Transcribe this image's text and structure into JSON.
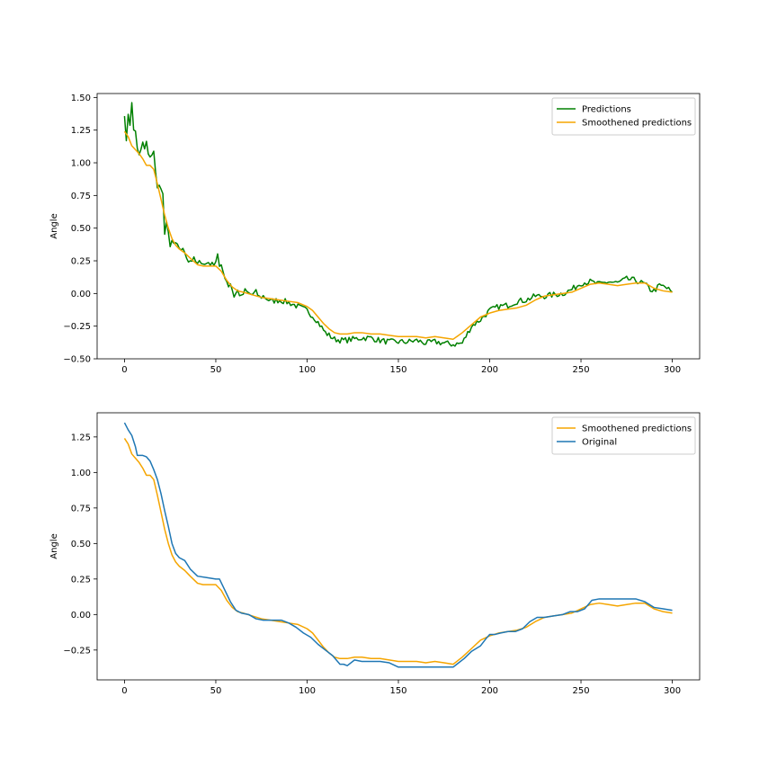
{
  "chart_data": [
    {
      "type": "line",
      "title": "",
      "xlabel": "",
      "ylabel": "Angle",
      "xlim": [
        -15,
        315
      ],
      "ylim": [
        -0.5,
        1.53
      ],
      "xticks": [
        0,
        50,
        100,
        150,
        200,
        250,
        300
      ],
      "yticks": [
        -0.5,
        -0.25,
        0.0,
        0.25,
        0.5,
        0.75,
        1.0,
        1.25,
        1.5
      ],
      "ytick_labels": [
        "−0.50",
        "−0.25",
        "0.00",
        "0.25",
        "0.50",
        "0.75",
        "1.00",
        "1.25",
        "1.50"
      ],
      "grid": false,
      "legend_position": "top-right",
      "series": [
        {
          "name": "Predictions",
          "color": "#008000",
          "noisy": true,
          "x": [
            0,
            1,
            2,
            3,
            4,
            5,
            6,
            7,
            8,
            10,
            11,
            12,
            13,
            14,
            15,
            16,
            17,
            18,
            19,
            20,
            21,
            22,
            23,
            24,
            25,
            26,
            27,
            28,
            30,
            33,
            35,
            38,
            40,
            42,
            44,
            46,
            48,
            50,
            51,
            52,
            53,
            55,
            57,
            58,
            60,
            62,
            64,
            66,
            68,
            70,
            72,
            74,
            76,
            78,
            80,
            85,
            90,
            95,
            100,
            105,
            110,
            115,
            120,
            125,
            130,
            135,
            140,
            145,
            150,
            155,
            160,
            165,
            170,
            175,
            180,
            185,
            190,
            195,
            200,
            205,
            210,
            215,
            220,
            225,
            230,
            235,
            240,
            245,
            250,
            255,
            260,
            265,
            270,
            275,
            280,
            285,
            288,
            290,
            293,
            296,
            300
          ],
          "y": [
            1.38,
            1.15,
            1.38,
            1.3,
            1.45,
            1.25,
            1.25,
            1.1,
            1.05,
            1.15,
            1.1,
            1.15,
            1.08,
            1.05,
            1.05,
            1.08,
            0.95,
            0.8,
            0.83,
            0.78,
            0.75,
            0.47,
            0.55,
            0.45,
            0.35,
            0.4,
            0.38,
            0.37,
            0.35,
            0.32,
            0.25,
            0.26,
            0.22,
            0.25,
            0.22,
            0.24,
            0.22,
            0.25,
            0.31,
            0.2,
            0.2,
            0.13,
            0.06,
            0.08,
            -0.02,
            0.02,
            -0.03,
            0.02,
            0.0,
            -0.01,
            0.01,
            -0.03,
            -0.02,
            -0.04,
            -0.06,
            -0.05,
            -0.07,
            -0.1,
            -0.13,
            -0.2,
            -0.3,
            -0.35,
            -0.36,
            -0.35,
            -0.34,
            -0.34,
            -0.36,
            -0.37,
            -0.37,
            -0.37,
            -0.36,
            -0.38,
            -0.37,
            -0.38,
            -0.39,
            -0.38,
            -0.25,
            -0.2,
            -0.13,
            -0.1,
            -0.09,
            -0.06,
            -0.05,
            -0.02,
            -0.02,
            -0.01,
            0.0,
            0.03,
            0.08,
            0.09,
            0.07,
            0.09,
            0.08,
            0.11,
            0.1,
            0.07,
            0.03,
            0.02,
            0.06,
            0.05,
            0.01
          ]
        },
        {
          "name": "Smoothened predictions",
          "color": "#f5a500",
          "x": [
            0,
            2,
            4,
            6,
            8,
            10,
            12,
            14,
            16,
            18,
            20,
            22,
            24,
            26,
            28,
            30,
            33,
            36,
            40,
            43,
            46,
            50,
            53,
            56,
            59,
            62,
            65,
            70,
            75,
            80,
            85,
            90,
            95,
            100,
            103,
            106,
            109,
            112,
            115,
            118,
            122,
            126,
            130,
            135,
            140,
            145,
            150,
            155,
            160,
            165,
            170,
            175,
            180,
            185,
            190,
            195,
            200,
            205,
            210,
            215,
            220,
            225,
            230,
            235,
            240,
            245,
            250,
            255,
            260,
            265,
            270,
            275,
            280,
            285,
            290,
            295,
            300
          ],
          "y": [
            1.24,
            1.2,
            1.13,
            1.1,
            1.07,
            1.03,
            0.98,
            0.98,
            0.95,
            0.84,
            0.72,
            0.6,
            0.5,
            0.42,
            0.37,
            0.34,
            0.31,
            0.27,
            0.22,
            0.21,
            0.21,
            0.21,
            0.17,
            0.1,
            0.05,
            0.02,
            0.01,
            -0.01,
            -0.03,
            -0.04,
            -0.05,
            -0.06,
            -0.07,
            -0.1,
            -0.13,
            -0.18,
            -0.23,
            -0.27,
            -0.3,
            -0.31,
            -0.31,
            -0.3,
            -0.3,
            -0.31,
            -0.31,
            -0.32,
            -0.33,
            -0.33,
            -0.33,
            -0.34,
            -0.33,
            -0.34,
            -0.35,
            -0.3,
            -0.24,
            -0.18,
            -0.15,
            -0.13,
            -0.12,
            -0.11,
            -0.09,
            -0.05,
            -0.02,
            -0.01,
            0.0,
            0.01,
            0.04,
            0.07,
            0.08,
            0.07,
            0.06,
            0.07,
            0.08,
            0.08,
            0.04,
            0.02,
            0.01
          ]
        }
      ]
    },
    {
      "type": "line",
      "title": "",
      "xlabel": "",
      "ylabel": "Angle",
      "xlim": [
        -15,
        315
      ],
      "ylim": [
        -0.46,
        1.42
      ],
      "xticks": [
        0,
        50,
        100,
        150,
        200,
        250,
        300
      ],
      "yticks": [
        -0.25,
        0.0,
        0.25,
        0.5,
        0.75,
        1.0,
        1.25
      ],
      "ytick_labels": [
        "−0.25",
        "0.00",
        "0.25",
        "0.50",
        "0.75",
        "1.00",
        "1.25"
      ],
      "grid": false,
      "legend_position": "top-right",
      "series": [
        {
          "name": "Smoothened predictions",
          "color": "#f5a500",
          "x": [
            0,
            2,
            4,
            6,
            8,
            10,
            12,
            14,
            16,
            18,
            20,
            22,
            24,
            26,
            28,
            30,
            33,
            36,
            40,
            43,
            46,
            50,
            53,
            56,
            59,
            62,
            65,
            70,
            75,
            80,
            85,
            90,
            95,
            100,
            103,
            106,
            109,
            112,
            115,
            118,
            122,
            126,
            130,
            135,
            140,
            145,
            150,
            155,
            160,
            165,
            170,
            175,
            180,
            185,
            190,
            195,
            200,
            205,
            210,
            215,
            220,
            225,
            230,
            235,
            240,
            245,
            250,
            255,
            260,
            265,
            270,
            275,
            280,
            285,
            290,
            295,
            300
          ],
          "y": [
            1.24,
            1.2,
            1.13,
            1.1,
            1.07,
            1.03,
            0.98,
            0.98,
            0.95,
            0.84,
            0.72,
            0.6,
            0.5,
            0.42,
            0.37,
            0.34,
            0.31,
            0.27,
            0.22,
            0.21,
            0.21,
            0.21,
            0.17,
            0.1,
            0.05,
            0.02,
            0.01,
            -0.01,
            -0.03,
            -0.04,
            -0.05,
            -0.06,
            -0.07,
            -0.1,
            -0.13,
            -0.18,
            -0.23,
            -0.27,
            -0.3,
            -0.31,
            -0.31,
            -0.3,
            -0.3,
            -0.31,
            -0.31,
            -0.32,
            -0.33,
            -0.33,
            -0.33,
            -0.34,
            -0.33,
            -0.34,
            -0.35,
            -0.3,
            -0.24,
            -0.18,
            -0.15,
            -0.13,
            -0.12,
            -0.11,
            -0.09,
            -0.05,
            -0.02,
            -0.01,
            0.0,
            0.01,
            0.04,
            0.07,
            0.08,
            0.07,
            0.06,
            0.07,
            0.08,
            0.08,
            0.04,
            0.02,
            0.01
          ]
        },
        {
          "name": "Original",
          "color": "#1f77b4",
          "x": [
            0,
            2,
            4,
            6,
            7,
            10,
            12,
            14,
            16,
            18,
            20,
            22,
            24,
            26,
            28,
            30,
            33,
            36,
            40,
            45,
            50,
            52,
            55,
            58,
            61,
            64,
            68,
            72,
            76,
            80,
            86,
            90,
            94,
            98,
            102,
            106,
            110,
            114,
            116,
            118,
            120,
            122,
            126,
            130,
            135,
            140,
            145,
            150,
            155,
            160,
            165,
            170,
            175,
            180,
            182,
            186,
            190,
            195,
            198,
            200,
            203,
            206,
            210,
            214,
            218,
            222,
            226,
            230,
            235,
            240,
            244,
            248,
            252,
            256,
            260,
            264,
            268,
            272,
            276,
            280,
            285,
            290,
            295,
            300
          ],
          "y": [
            1.35,
            1.3,
            1.26,
            1.18,
            1.12,
            1.12,
            1.11,
            1.08,
            1.02,
            0.95,
            0.85,
            0.73,
            0.62,
            0.5,
            0.43,
            0.4,
            0.38,
            0.32,
            0.27,
            0.26,
            0.25,
            0.25,
            0.17,
            0.09,
            0.03,
            0.01,
            0.0,
            -0.03,
            -0.04,
            -0.04,
            -0.04,
            -0.06,
            -0.09,
            -0.13,
            -0.16,
            -0.21,
            -0.25,
            -0.29,
            -0.32,
            -0.35,
            -0.35,
            -0.36,
            -0.32,
            -0.33,
            -0.33,
            -0.33,
            -0.34,
            -0.37,
            -0.37,
            -0.37,
            -0.37,
            -0.37,
            -0.37,
            -0.37,
            -0.35,
            -0.31,
            -0.26,
            -0.22,
            -0.17,
            -0.14,
            -0.14,
            -0.13,
            -0.12,
            -0.12,
            -0.1,
            -0.05,
            -0.02,
            -0.02,
            -0.01,
            0.0,
            0.02,
            0.02,
            0.04,
            0.1,
            0.11,
            0.11,
            0.11,
            0.11,
            0.11,
            0.11,
            0.09,
            0.05,
            0.04,
            0.03
          ]
        }
      ]
    }
  ]
}
